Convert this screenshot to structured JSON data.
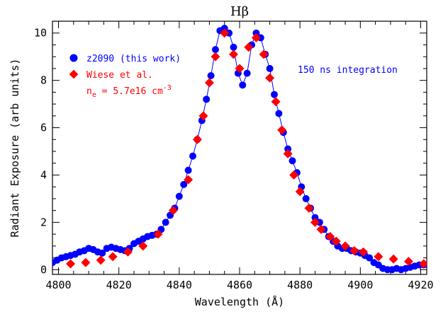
{
  "chart_data": {
    "type": "scatter",
    "title": "Hβ",
    "xlabel": "Wavelength (Å)",
    "ylabel": "Radiant Exposure (arb units)",
    "xlim": [
      4798,
      4922
    ],
    "ylim": [
      -0.2,
      10.5
    ],
    "xticks": [
      4800,
      4820,
      4840,
      4860,
      4880,
      4900,
      4920
    ],
    "yticks": [
      0,
      2,
      4,
      6,
      8,
      10
    ],
    "legend_position": "top-left",
    "annotation": "150 ns integration",
    "series": [
      {
        "name": "z2090 (this work)",
        "marker": "circle",
        "color": "#0000ff",
        "line": true,
        "x": [
          4798,
          4799.5,
          4801,
          4802.5,
          4804,
          4805.5,
          4807,
          4808.5,
          4810,
          4811.5,
          4813,
          4814.5,
          4816,
          4817.5,
          4819,
          4820.5,
          4822,
          4823.5,
          4825,
          4826.5,
          4828,
          4829.5,
          4831,
          4832.5,
          4834,
          4835.5,
          4837,
          4838.5,
          4840,
          4841.5,
          4843,
          4844.5,
          4846,
          4847.5,
          4849,
          4850.5,
          4852,
          4853.5,
          4855,
          4856.5,
          4858,
          4859.5,
          4861,
          4862.5,
          4864,
          4865.5,
          4867,
          4868.5,
          4870,
          4871.5,
          4873,
          4874.5,
          4876,
          4877.5,
          4879,
          4880.5,
          4882,
          4883.5,
          4885,
          4886.5,
          4888,
          4889.5,
          4891,
          4892.5,
          4894,
          4895.5,
          4897,
          4898.5,
          4900,
          4901.5,
          4903,
          4904.5,
          4906,
          4907.5,
          4909,
          4910.5,
          4912,
          4913.5,
          4915,
          4916.5,
          4918,
          4919.5,
          4921
        ],
        "y": [
          0.3,
          0.4,
          0.5,
          0.55,
          0.6,
          0.65,
          0.75,
          0.8,
          0.9,
          0.85,
          0.75,
          0.7,
          0.9,
          0.95,
          0.9,
          0.85,
          0.8,
          0.9,
          1.1,
          1.2,
          1.3,
          1.4,
          1.45,
          1.5,
          1.7,
          2.0,
          2.3,
          2.6,
          3.1,
          3.6,
          4.2,
          4.8,
          5.5,
          6.3,
          7.2,
          8.2,
          9.3,
          10.1,
          10.2,
          10.0,
          9.4,
          8.3,
          7.8,
          8.3,
          9.5,
          10.0,
          9.8,
          9.1,
          8.5,
          7.4,
          6.6,
          5.8,
          5.1,
          4.6,
          4.1,
          3.5,
          3.0,
          2.6,
          2.2,
          2.0,
          1.7,
          1.4,
          1.2,
          1.0,
          0.9,
          0.9,
          0.8,
          0.75,
          0.7,
          0.6,
          0.5,
          0.3,
          0.2,
          0.05,
          0.0,
          0.0,
          0.05,
          0.0,
          0.05,
          0.1,
          0.15,
          0.2,
          0.2
        ]
      },
      {
        "name": "Wiese et al.",
        "marker": "diamond",
        "color": "#ff0000",
        "line": false,
        "x": [
          4804,
          4809,
          4814,
          4818,
          4823,
          4828,
          4833,
          4838,
          4843,
          4846,
          4848,
          4850,
          4852,
          4855,
          4858,
          4860,
          4863,
          4865.5,
          4868,
          4870,
          4872,
          4874,
          4876,
          4878,
          4880,
          4883,
          4885,
          4887,
          4890,
          4892,
          4895,
          4898,
          4901,
          4906,
          4911,
          4916,
          4921
        ],
        "y": [
          0.25,
          0.3,
          0.4,
          0.55,
          0.75,
          1.0,
          1.5,
          2.5,
          3.8,
          5.5,
          6.5,
          7.9,
          9.0,
          10.0,
          9.1,
          8.5,
          9.4,
          9.8,
          9.1,
          8.1,
          7.1,
          5.9,
          4.9,
          4.0,
          3.3,
          2.6,
          2.0,
          1.7,
          1.4,
          1.2,
          1.0,
          0.8,
          0.75,
          0.55,
          0.45,
          0.35,
          0.25
        ]
      }
    ]
  },
  "legend": {
    "items": [
      {
        "label": "z2090 (this work)",
        "color": "#0000ff"
      },
      {
        "label": "Wiese et al.",
        "color": "#ff0000"
      }
    ],
    "density_label_main": "n",
    "density_label_sub": "e",
    "density_label_value": " = 5.7e16 cm",
    "density_label_exp": "-3"
  }
}
